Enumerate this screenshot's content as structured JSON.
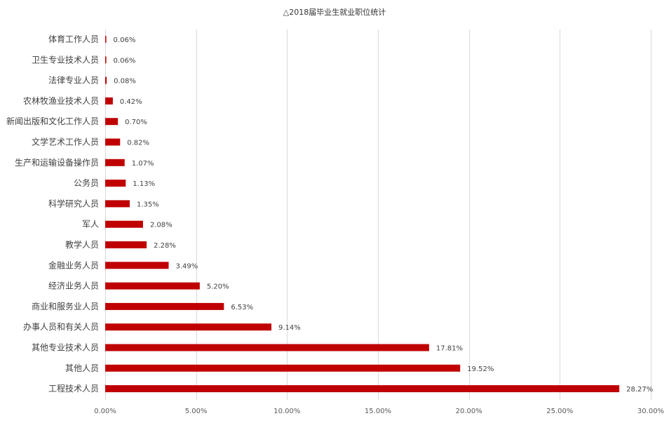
{
  "chart_data": {
    "type": "bar",
    "orientation": "horizontal",
    "title": "△2018届毕业生就业职位统计",
    "xlabel": "",
    "ylabel": "",
    "xlim": [
      0,
      30
    ],
    "ticks": [
      "0.00%",
      "5.00%",
      "10.00%",
      "15.00%",
      "20.00%",
      "25.00%",
      "30.00%"
    ],
    "tick_values": [
      0,
      5,
      10,
      15,
      20,
      25,
      30
    ],
    "grid": true,
    "legend": "none",
    "bar_color": "#C00000",
    "categories": [
      "体育工作人员",
      "卫生专业技术人员",
      "法律专业人员",
      "农林牧渔业技术人员",
      "新闻出版和文化工作人员",
      "文学艺术工作人员",
      "生产和运输设备操作员",
      "公务员",
      "科学研究人员",
      "军人",
      "教学人员",
      "金融业务人员",
      "经济业务人员",
      "商业和服务业人员",
      "办事人员和有关人员",
      "其他专业技术人员",
      "其他人员",
      "工程技术人员"
    ],
    "values": [
      0.06,
      0.06,
      0.08,
      0.42,
      0.7,
      0.82,
      1.07,
      1.13,
      1.35,
      2.08,
      2.28,
      3.49,
      5.2,
      6.53,
      9.14,
      17.81,
      19.52,
      28.27
    ],
    "value_labels": [
      "0.06%",
      "0.06%",
      "0.08%",
      "0.42%",
      "0.70%",
      "0.82%",
      "1.07%",
      "1.13%",
      "1.35%",
      "2.08%",
      "2.28%",
      "3.49%",
      "5.20%",
      "6.53%",
      "9.14%",
      "17.81%",
      "19.52%",
      "28.27%"
    ]
  }
}
